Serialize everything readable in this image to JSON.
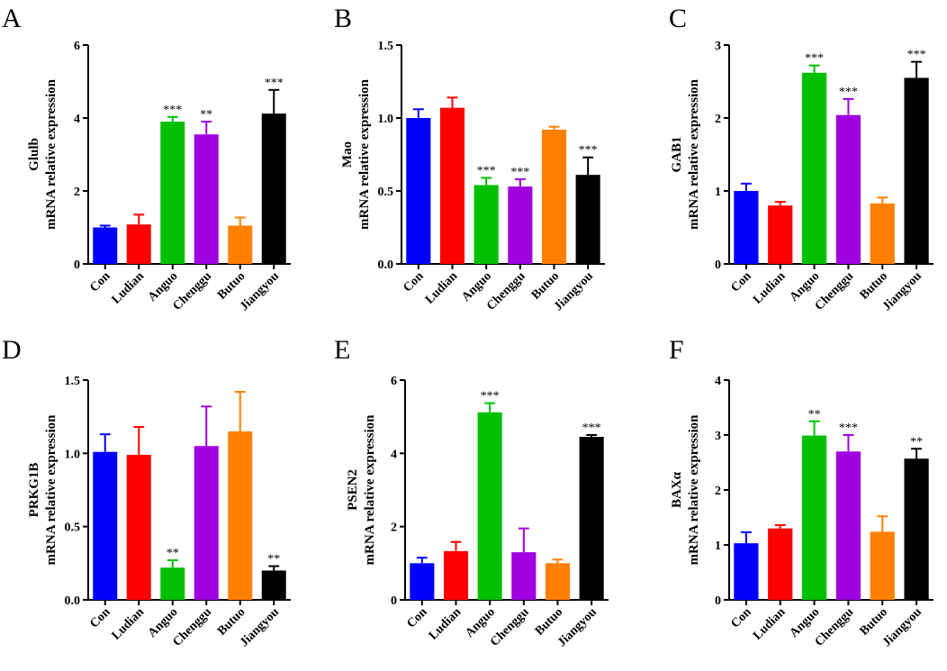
{
  "colors": {
    "Con": "#0000ff",
    "Ludian": "#ff0000",
    "Anguo": "#00c000",
    "Chenggu": "#a000e0",
    "Butuo": "#ff8000",
    "Jiangyou": "#000000"
  },
  "chart_data": [
    {
      "panel": "A",
      "type": "bar",
      "title": "",
      "ylabel_gene": "Glulb",
      "ylabel": "mRNA relative expression",
      "categories": [
        "Con",
        "Ludian",
        "Anguo",
        "Chenggu",
        "Butuo",
        "Jiangyou"
      ],
      "values": [
        1.0,
        1.08,
        3.9,
        3.55,
        1.05,
        4.12
      ],
      "errors": [
        0.05,
        0.27,
        0.13,
        0.35,
        0.22,
        0.65
      ],
      "significance": [
        "",
        "",
        "***",
        "**",
        "",
        "***"
      ],
      "ylim": [
        0,
        6
      ],
      "yticks": [
        0,
        2,
        4,
        6
      ],
      "ytick_labels": [
        "0",
        "2",
        "4",
        "6"
      ]
    },
    {
      "panel": "B",
      "type": "bar",
      "title": "",
      "ylabel_gene": "Mao",
      "ylabel": "mRNA relative expression",
      "categories": [
        "Con",
        "Ludian",
        "Anguo",
        "Chenggu",
        "Butuo",
        "Jiangyou"
      ],
      "values": [
        1.0,
        1.07,
        0.54,
        0.53,
        0.92,
        0.61
      ],
      "errors": [
        0.06,
        0.07,
        0.05,
        0.05,
        0.02,
        0.12
      ],
      "significance": [
        "",
        "",
        "***",
        "***",
        "",
        "***"
      ],
      "ylim": [
        0,
        1.5
      ],
      "yticks": [
        0,
        0.5,
        1.0,
        1.5
      ],
      "ytick_labels": [
        "0.0",
        "0.5",
        "1.0",
        "1.5"
      ]
    },
    {
      "panel": "C",
      "type": "bar",
      "title": "",
      "ylabel_gene": "GAB1",
      "ylabel": "mRNA relative expression",
      "categories": [
        "Con",
        "Ludian",
        "Anguo",
        "Chenggu",
        "Butuo",
        "Jiangyou"
      ],
      "values": [
        1.0,
        0.8,
        2.62,
        2.04,
        0.83,
        2.55
      ],
      "errors": [
        0.1,
        0.05,
        0.1,
        0.22,
        0.08,
        0.22
      ],
      "significance": [
        "",
        "",
        "***",
        "***",
        "",
        "***"
      ],
      "ylim": [
        0,
        3
      ],
      "yticks": [
        0,
        1,
        2,
        3
      ],
      "ytick_labels": [
        "0",
        "1",
        "2",
        "3"
      ]
    },
    {
      "panel": "D",
      "type": "bar",
      "title": "",
      "ylabel_gene": "PRKG1B",
      "ylabel": "mRNA relative expression",
      "categories": [
        "Con",
        "Ludian",
        "Anguo",
        "Chenggu",
        "Butuo",
        "Jiangyou"
      ],
      "values": [
        1.01,
        0.99,
        0.22,
        1.05,
        1.15,
        0.2
      ],
      "errors": [
        0.12,
        0.19,
        0.05,
        0.27,
        0.27,
        0.03
      ],
      "significance": [
        "",
        "",
        "**",
        "",
        "",
        "**"
      ],
      "ylim": [
        0,
        1.5
      ],
      "yticks": [
        0,
        0.5,
        1.0,
        1.5
      ],
      "ytick_labels": [
        "0.0",
        "0.5",
        "1.0",
        "1.5"
      ]
    },
    {
      "panel": "E",
      "type": "bar",
      "title": "",
      "ylabel_gene": "PSEN2",
      "ylabel": "mRNA relative expression",
      "categories": [
        "Con",
        "Ludian",
        "Anguo",
        "Chenggu",
        "Butuo",
        "Jiangyou"
      ],
      "values": [
        1.0,
        1.33,
        5.12,
        1.3,
        1.0,
        4.45
      ],
      "errors": [
        0.15,
        0.25,
        0.25,
        0.65,
        0.1,
        0.05
      ],
      "significance": [
        "",
        "",
        "***",
        "",
        "",
        "***"
      ],
      "ylim": [
        0,
        6
      ],
      "yticks": [
        0,
        2,
        4,
        6
      ],
      "ytick_labels": [
        "0",
        "2",
        "4",
        "6"
      ]
    },
    {
      "panel": "F",
      "type": "bar",
      "title": "",
      "ylabel_gene": "BAXα",
      "ylabel": "mRNA relative expression",
      "categories": [
        "Con",
        "Ludian",
        "Anguo",
        "Chenggu",
        "Butuo",
        "Jiangyou"
      ],
      "values": [
        1.03,
        1.3,
        2.99,
        2.7,
        1.24,
        2.57
      ],
      "errors": [
        0.2,
        0.06,
        0.26,
        0.3,
        0.28,
        0.18
      ],
      "significance": [
        "",
        "",
        "**",
        "***",
        "",
        "**"
      ],
      "ylim": [
        0,
        4
      ],
      "yticks": [
        0,
        1,
        2,
        3,
        4
      ],
      "ytick_labels": [
        "0",
        "1",
        "2",
        "3",
        "4"
      ]
    }
  ]
}
